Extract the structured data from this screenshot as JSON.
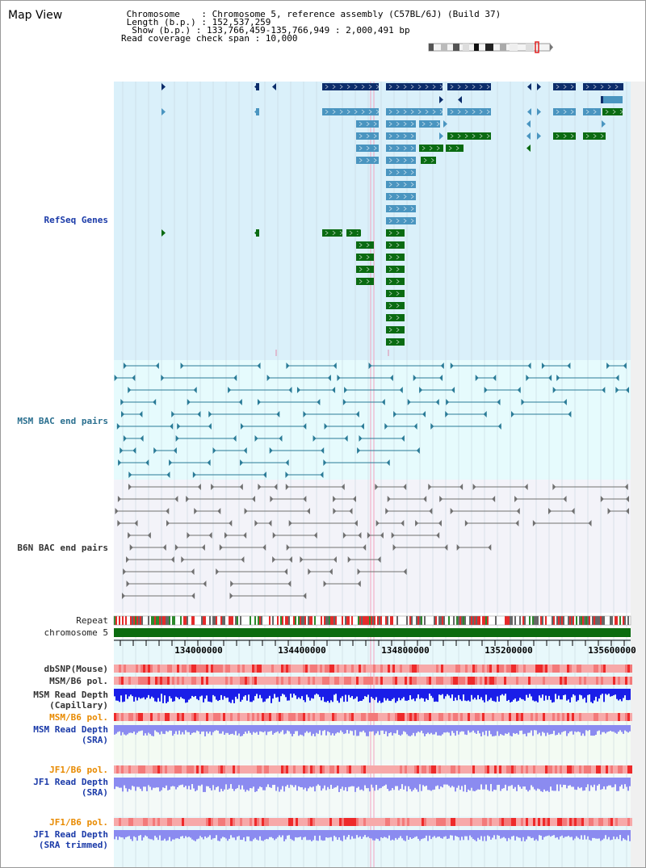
{
  "view": {
    "title": "Map View",
    "info_lines": [
      " Chromosome    : Chromosome 5, reference assembly (C57BL/6J) (Build 37)",
      " Length (b.p.) : 152,537,259",
      "  Show (b.p.) : 133,766,459-135,766,949 : 2,000,491 bp",
      "Read coverage check span : 10,000"
    ]
  },
  "tracks": {
    "refseq": "RefSeq Genes",
    "msm_bac": "MSM BAC end pairs",
    "b6n_bac": "B6N BAC end pairs",
    "repeat": "Repeat",
    "chromosome": "chromosome 5",
    "dbsnp": "dbSNP(Mouse)",
    "msm_b6_pol": "MSM/B6 pol.",
    "msm_depth_cap_1": "MSM Read Depth",
    "msm_depth_cap_2": "(Capillary)",
    "msm_b6_pol_sra": "MSM/B6 pol.",
    "msm_depth_sra_1": "MSM Read Depth",
    "msm_depth_sra_2": "(SRA)",
    "jf1_b6_pol": "JF1/B6 pol.",
    "jf1_depth_1": "JF1 Read Depth",
    "jf1_depth_2": "(SRA)",
    "jf1_b6_pol_trim": "JF1/B6 pol.",
    "jf1_depth_trim_1": "JF1 Read Depth",
    "jf1_depth_trim_2": "(SRA trimmed)"
  },
  "axis": {
    "ticks": [
      "134000000",
      "134400000",
      "134800000",
      "135200000",
      "135600000"
    ]
  },
  "colors": {
    "refseq_bg": "#daf0fa",
    "msm_bg": "#e6fbfd",
    "b6n_bg": "#f3f3f9",
    "gene_dark": "#0c2d6b",
    "gene_mid": "#4a95c0",
    "gene_green": "#0a6b12",
    "bac_msm": "#2a7b97",
    "bac_b6n": "#707070",
    "chromosome": "#0b6c10",
    "depth_dark": "#1a1ee8",
    "depth_light": "#8b8bf0",
    "pol_red": "#ee2a2a",
    "pol_light": "#f7a9a9",
    "label_blue": "#1a3aa8",
    "label_orange": "#e88a00"
  }
}
